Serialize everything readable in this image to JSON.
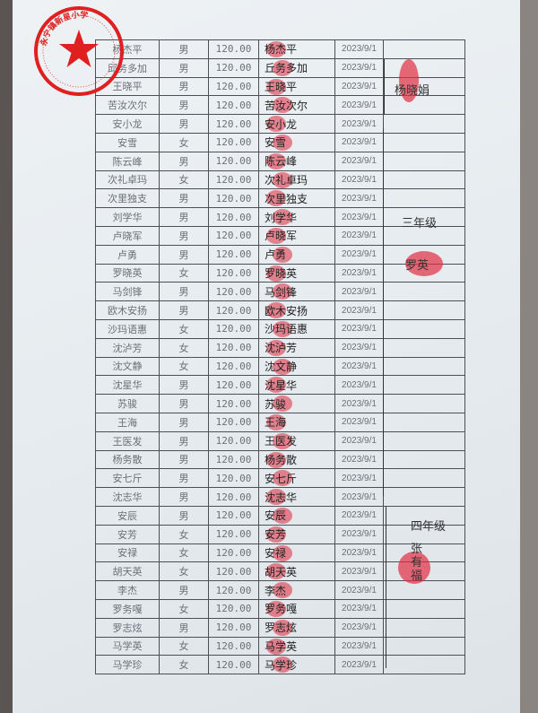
{
  "seal": {
    "text": "永宁镇新星小学",
    "color": "#e02020"
  },
  "rows": [
    {
      "name": "杨杰平",
      "gender": "男",
      "amount": "120.00",
      "signature": "杨杰平",
      "date": "2023/9/1"
    },
    {
      "name": "邱务多加",
      "gender": "男",
      "amount": "120.00",
      "signature": "丘务多加",
      "date": "2023/9/1"
    },
    {
      "name": "王晓平",
      "gender": "男",
      "amount": "120.00",
      "signature": "王晓平",
      "date": "2023/9/1"
    },
    {
      "name": "苦汝次尔",
      "gender": "男",
      "amount": "120.00",
      "signature": "苦汝次尔",
      "date": "2023/9/1"
    },
    {
      "name": "安小龙",
      "gender": "男",
      "amount": "120.00",
      "signature": "安小龙",
      "date": "2023/9/1"
    },
    {
      "name": "安雪",
      "gender": "女",
      "amount": "120.00",
      "signature": "安雪",
      "date": "2023/9/1"
    },
    {
      "name": "陈云峰",
      "gender": "男",
      "amount": "120.00",
      "signature": "陈云峰",
      "date": "2023/9/1"
    },
    {
      "name": "次礼卓玛",
      "gender": "女",
      "amount": "120.00",
      "signature": "次礼卓玛",
      "date": "2023/9/1"
    },
    {
      "name": "次里独支",
      "gender": "男",
      "amount": "120.00",
      "signature": "次里独支",
      "date": "2023/9/1"
    },
    {
      "name": "刘学华",
      "gender": "男",
      "amount": "120.00",
      "signature": "刘学华",
      "date": "2023/9/1"
    },
    {
      "name": "卢晓军",
      "gender": "男",
      "amount": "120.00",
      "signature": "卢晓军",
      "date": "2023/9/1"
    },
    {
      "name": "卢勇",
      "gender": "男",
      "amount": "120.00",
      "signature": "卢勇",
      "date": "2023/9/1"
    },
    {
      "name": "罗晓英",
      "gender": "女",
      "amount": "120.00",
      "signature": "罗晓英",
      "date": "2023/9/1"
    },
    {
      "name": "马剑锋",
      "gender": "男",
      "amount": "120.00",
      "signature": "马剑锋",
      "date": "2023/9/1"
    },
    {
      "name": "欧木安扬",
      "gender": "男",
      "amount": "120.00",
      "signature": "欧木安扬",
      "date": "2023/9/1"
    },
    {
      "name": "沙玛语惠",
      "gender": "女",
      "amount": "120.00",
      "signature": "沙玛语惠",
      "date": "2023/9/1"
    },
    {
      "name": "沈泸芳",
      "gender": "女",
      "amount": "120.00",
      "signature": "沈泸芳",
      "date": "2023/9/1"
    },
    {
      "name": "沈文静",
      "gender": "女",
      "amount": "120.00",
      "signature": "沈文静",
      "date": "2023/9/1"
    },
    {
      "name": "沈星华",
      "gender": "男",
      "amount": "120.00",
      "signature": "沈星华",
      "date": "2023/9/1"
    },
    {
      "name": "苏骏",
      "gender": "男",
      "amount": "120.00",
      "signature": "苏骏",
      "date": "2023/9/1"
    },
    {
      "name": "王海",
      "gender": "男",
      "amount": "120.00",
      "signature": "王海",
      "date": "2023/9/1"
    },
    {
      "name": "王医发",
      "gender": "男",
      "amount": "120.00",
      "signature": "王医发",
      "date": "2023/9/1"
    },
    {
      "name": "杨务散",
      "gender": "男",
      "amount": "120.00",
      "signature": "杨务散",
      "date": "2023/9/1"
    },
    {
      "name": "安七斤",
      "gender": "男",
      "amount": "120.00",
      "signature": "安七斤",
      "date": "2023/9/1"
    },
    {
      "name": "沈志华",
      "gender": "男",
      "amount": "120.00",
      "signature": "沈志华",
      "date": "2023/9/1"
    },
    {
      "name": "安辰",
      "gender": "男",
      "amount": "120.00",
      "signature": "安辰",
      "date": "2023/9/1"
    },
    {
      "name": "安芳",
      "gender": "女",
      "amount": "120.00",
      "signature": "安芳",
      "date": "2023/9/1"
    },
    {
      "name": "安禄",
      "gender": "女",
      "amount": "120.00",
      "signature": "安禄",
      "date": "2023/9/1"
    },
    {
      "name": "胡天英",
      "gender": "女",
      "amount": "120.00",
      "signature": "胡天英",
      "date": "2023/9/1"
    },
    {
      "name": "李杰",
      "gender": "男",
      "amount": "120.00",
      "signature": "李杰",
      "date": "2023/9/1"
    },
    {
      "name": "罗务嘎",
      "gender": "女",
      "amount": "120.00",
      "signature": "罗务嘎",
      "date": "2023/9/1"
    },
    {
      "name": "罗志炫",
      "gender": "男",
      "amount": "120.00",
      "signature": "罗志炫",
      "date": "2023/9/1"
    },
    {
      "name": "马学英",
      "gender": "女",
      "amount": "120.00",
      "signature": "马学英",
      "date": "2023/9/1"
    },
    {
      "name": "马学珍",
      "gender": "女",
      "amount": "120.00",
      "signature": "马学珍",
      "date": "2023/9/1"
    }
  ],
  "notes": {
    "group1_signer": "杨晓娟",
    "group2_grade": "三年级",
    "group2_signer": "罗英",
    "group3_grade": "四年级",
    "group3_signer": "张有福"
  }
}
